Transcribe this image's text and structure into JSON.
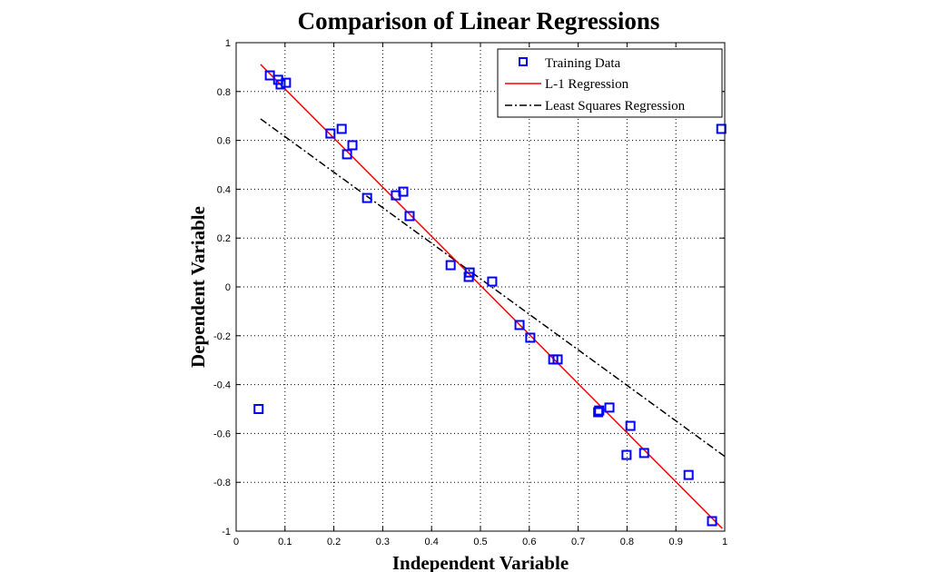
{
  "chart_data": {
    "type": "scatter",
    "title": "Comparison of Linear Regressions",
    "xlabel": "Independent Variable",
    "ylabel": "Dependent Variable",
    "xlim": [
      0,
      1
    ],
    "ylim": [
      -1,
      1
    ],
    "xticks": [
      "0",
      "0.1",
      "0.2",
      "0.3",
      "0.4",
      "0.5",
      "0.6",
      "0.7",
      "0.8",
      "0.9",
      "1"
    ],
    "yticks": [
      "-1",
      "-0.8",
      "-0.6",
      "-0.4",
      "-0.2",
      "0",
      "0.2",
      "0.4",
      "0.6",
      "0.8",
      "1"
    ],
    "grid": true,
    "legend_position": "top-right",
    "series": [
      {
        "name": "Training Data",
        "type": "scatter",
        "marker": "square",
        "color": "#0000ff",
        "x": [
          0.046,
          0.069,
          0.086,
          0.091,
          0.102,
          0.193,
          0.216,
          0.227,
          0.238,
          0.268,
          0.327,
          0.342,
          0.355,
          0.439,
          0.476,
          0.478,
          0.524,
          0.58,
          0.602,
          0.649,
          0.658,
          0.741,
          0.743,
          0.764,
          0.807,
          0.799,
          0.835,
          0.926,
          0.974,
          0.993
        ],
        "y": [
          -0.5,
          0.866,
          0.848,
          0.829,
          0.836,
          0.628,
          0.647,
          0.543,
          0.58,
          0.364,
          0.375,
          0.39,
          0.29,
          0.089,
          0.041,
          0.059,
          0.022,
          -0.156,
          -0.208,
          -0.297,
          -0.297,
          -0.513,
          -0.506,
          -0.494,
          -0.569,
          -0.688,
          -0.68,
          -0.77,
          -0.959,
          0.647
        ]
      },
      {
        "name": "L-1 Regression",
        "type": "line",
        "style": "solid",
        "color": "#ff0000",
        "x": [
          0.05,
          0.995
        ],
        "y": [
          0.911,
          -0.989
        ]
      },
      {
        "name": "Least Squares Regression",
        "type": "line",
        "style": "dash-dot",
        "color": "#000000",
        "x": [
          0.05,
          1.0
        ],
        "y": [
          0.688,
          -0.694
        ]
      }
    ]
  }
}
